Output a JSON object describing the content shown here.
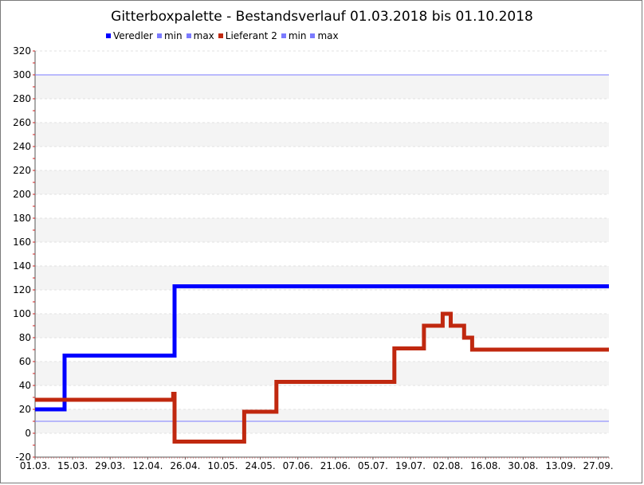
{
  "chart_data": {
    "type": "line",
    "title": "Gitterboxpalette - Bestandsverlauf 01.03.2018 bis 01.10.2018",
    "xlabel": "",
    "ylabel": "",
    "ylim": [
      -20,
      320
    ],
    "xlim": [
      "01.03.",
      "01.10."
    ],
    "y_ticks": [
      -20,
      0,
      20,
      40,
      60,
      80,
      100,
      120,
      140,
      160,
      180,
      200,
      220,
      240,
      260,
      280,
      300,
      320
    ],
    "x_ticks": [
      "01.03.",
      "15.03.",
      "29.03.",
      "12.04.",
      "26.04.",
      "10.05.",
      "24.05.",
      "07.06.",
      "21.06.",
      "05.07.",
      "19.07.",
      "02.08.",
      "16.08.",
      "30.08.",
      "13.09.",
      "27.09."
    ],
    "grid": "horizontal bands",
    "legend_position": "top",
    "legend": [
      {
        "label": "Veredler",
        "color": "#0000ff"
      },
      {
        "label": "min",
        "color": "#7b7bff"
      },
      {
        "label": "max",
        "color": "#7b7bff"
      },
      {
        "label": "Lieferant 2",
        "color": "#c0280f"
      },
      {
        "label": "min",
        "color": "#7b7bff"
      },
      {
        "label": "max",
        "color": "#7b7bff"
      }
    ],
    "reference_lines": [
      {
        "name": "max",
        "value": 300,
        "color": "#7b7bff"
      },
      {
        "name": "min",
        "value": 10,
        "color": "#7b7bff"
      }
    ],
    "series": [
      {
        "name": "Veredler",
        "color": "#0000ff",
        "step": true,
        "points": [
          {
            "x": 0,
            "y": 20
          },
          {
            "x": 11,
            "y": 20
          },
          {
            "x": 11,
            "y": 65
          },
          {
            "x": 52,
            "y": 65
          },
          {
            "x": 52,
            "y": 123
          },
          {
            "x": 214,
            "y": 123
          }
        ]
      },
      {
        "name": "Lieferant 2",
        "color": "#c0280f",
        "step": true,
        "points": [
          {
            "x": 0,
            "y": 28
          },
          {
            "x": 51.5,
            "y": 28
          },
          {
            "x": 51.5,
            "y": 33
          },
          {
            "x": 52,
            "y": 33
          },
          {
            "x": 52,
            "y": -7
          },
          {
            "x": 78,
            "y": -7
          },
          {
            "x": 78,
            "y": 18
          },
          {
            "x": 90,
            "y": 18
          },
          {
            "x": 90,
            "y": 43
          },
          {
            "x": 134,
            "y": 43
          },
          {
            "x": 134,
            "y": 71
          },
          {
            "x": 145,
            "y": 71
          },
          {
            "x": 145,
            "y": 90
          },
          {
            "x": 152,
            "y": 90
          },
          {
            "x": 152,
            "y": 100
          },
          {
            "x": 155,
            "y": 100
          },
          {
            "x": 155,
            "y": 90
          },
          {
            "x": 160,
            "y": 90
          },
          {
            "x": 160,
            "y": 80
          },
          {
            "x": 163,
            "y": 80
          },
          {
            "x": 163,
            "y": 70
          },
          {
            "x": 214,
            "y": 70
          }
        ]
      }
    ]
  }
}
